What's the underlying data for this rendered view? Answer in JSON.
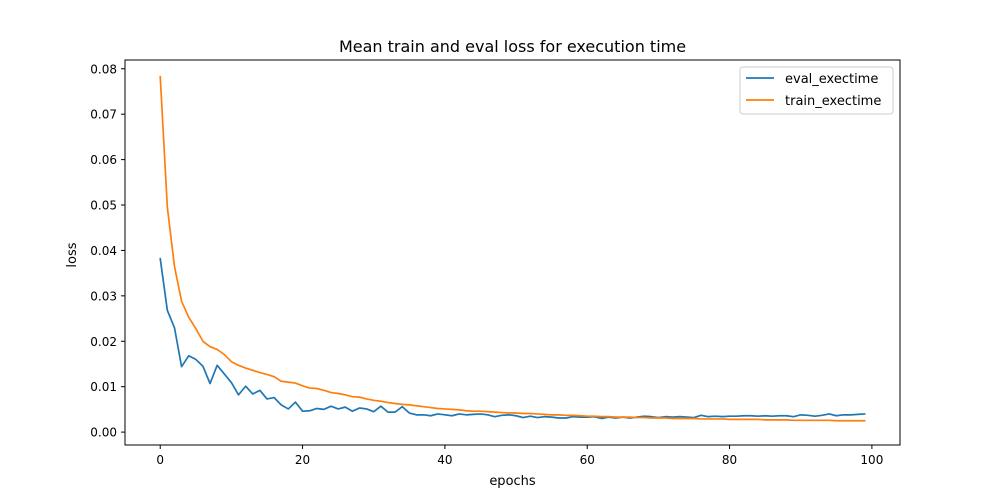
{
  "chart_data": {
    "type": "line",
    "title": "Mean train and eval loss for execution time",
    "xlabel": "epochs",
    "ylabel": "loss",
    "xlim": [
      -4.95,
      103.95
    ],
    "ylim": [
      -0.00284,
      0.08193
    ],
    "x_ticks": [
      "0",
      "20",
      "40",
      "60",
      "80",
      "100"
    ],
    "y_ticks": [
      "0.00",
      "0.01",
      "0.02",
      "0.03",
      "0.04",
      "0.05",
      "0.06",
      "0.07",
      "0.08"
    ],
    "grid": false,
    "legend_position": "top-right",
    "x": [
      0,
      1,
      2,
      3,
      4,
      5,
      6,
      7,
      8,
      9,
      10,
      11,
      12,
      13,
      14,
      15,
      16,
      17,
      18,
      19,
      20,
      21,
      22,
      23,
      24,
      25,
      26,
      27,
      28,
      29,
      30,
      31,
      32,
      33,
      34,
      35,
      36,
      37,
      38,
      39,
      40,
      41,
      42,
      43,
      44,
      45,
      46,
      47,
      48,
      49,
      50,
      51,
      52,
      53,
      54,
      55,
      56,
      57,
      58,
      59,
      60,
      61,
      62,
      63,
      64,
      65,
      66,
      67,
      68,
      69,
      70,
      71,
      72,
      73,
      74,
      75,
      76,
      77,
      78,
      79,
      80,
      81,
      82,
      83,
      84,
      85,
      86,
      87,
      88,
      89,
      90,
      91,
      92,
      93,
      94,
      95,
      96,
      97,
      98,
      99
    ],
    "series": [
      {
        "name": "eval_exectime",
        "color": "#1f77b4",
        "values": [
          0.0382,
          0.0268,
          0.023,
          0.0144,
          0.0168,
          0.016,
          0.0145,
          0.0107,
          0.0147,
          0.0128,
          0.0109,
          0.0082,
          0.0101,
          0.0084,
          0.0092,
          0.0073,
          0.0076,
          0.006,
          0.0051,
          0.0066,
          0.0046,
          0.0047,
          0.0052,
          0.005,
          0.0057,
          0.0051,
          0.0055,
          0.0046,
          0.0053,
          0.0051,
          0.0045,
          0.0057,
          0.0044,
          0.0044,
          0.0056,
          0.0042,
          0.0038,
          0.0038,
          0.0036,
          0.004,
          0.0038,
          0.0036,
          0.004,
          0.0038,
          0.0039,
          0.004,
          0.0038,
          0.0034,
          0.0037,
          0.0038,
          0.0036,
          0.0032,
          0.0035,
          0.0032,
          0.0034,
          0.0033,
          0.0031,
          0.0031,
          0.0034,
          0.0033,
          0.0033,
          0.0034,
          0.003,
          0.0033,
          0.0031,
          0.0033,
          0.0031,
          0.0033,
          0.0035,
          0.0034,
          0.0032,
          0.0034,
          0.0033,
          0.0034,
          0.0033,
          0.0032,
          0.0037,
          0.0034,
          0.0035,
          0.0034,
          0.0035,
          0.0035,
          0.0036,
          0.0036,
          0.0035,
          0.0036,
          0.0035,
          0.0036,
          0.0036,
          0.0034,
          0.0038,
          0.0037,
          0.0035,
          0.0037,
          0.004,
          0.0036,
          0.0038,
          0.0038,
          0.0039,
          0.004
        ]
      },
      {
        "name": "train_exectime",
        "color": "#ff7f0e",
        "values": [
          0.0783,
          0.0495,
          0.0365,
          0.0288,
          0.0253,
          0.0228,
          0.02,
          0.0188,
          0.0182,
          0.0171,
          0.0155,
          0.0147,
          0.0141,
          0.0136,
          0.0131,
          0.0127,
          0.0122,
          0.0112,
          0.011,
          0.0108,
          0.0102,
          0.0097,
          0.0096,
          0.0092,
          0.0087,
          0.0085,
          0.0082,
          0.0078,
          0.0077,
          0.0073,
          0.007,
          0.0068,
          0.0065,
          0.0063,
          0.0061,
          0.006,
          0.0058,
          0.0056,
          0.0054,
          0.0052,
          0.0051,
          0.005,
          0.0049,
          0.0047,
          0.0046,
          0.0046,
          0.0045,
          0.0044,
          0.0043,
          0.0042,
          0.0042,
          0.0041,
          0.0041,
          0.004,
          0.0039,
          0.0038,
          0.0038,
          0.0037,
          0.0037,
          0.0036,
          0.0035,
          0.0035,
          0.0034,
          0.0034,
          0.0033,
          0.0033,
          0.0033,
          0.0032,
          0.0032,
          0.0031,
          0.0031,
          0.0031,
          0.003,
          0.003,
          0.003,
          0.003,
          0.0029,
          0.0029,
          0.0029,
          0.0029,
          0.0028,
          0.0028,
          0.0028,
          0.0028,
          0.0028,
          0.0027,
          0.0027,
          0.0027,
          0.0027,
          0.0026,
          0.0026,
          0.0026,
          0.0026,
          0.0026,
          0.0026,
          0.0025,
          0.0025,
          0.0025,
          0.0025,
          0.0025
        ]
      }
    ]
  }
}
